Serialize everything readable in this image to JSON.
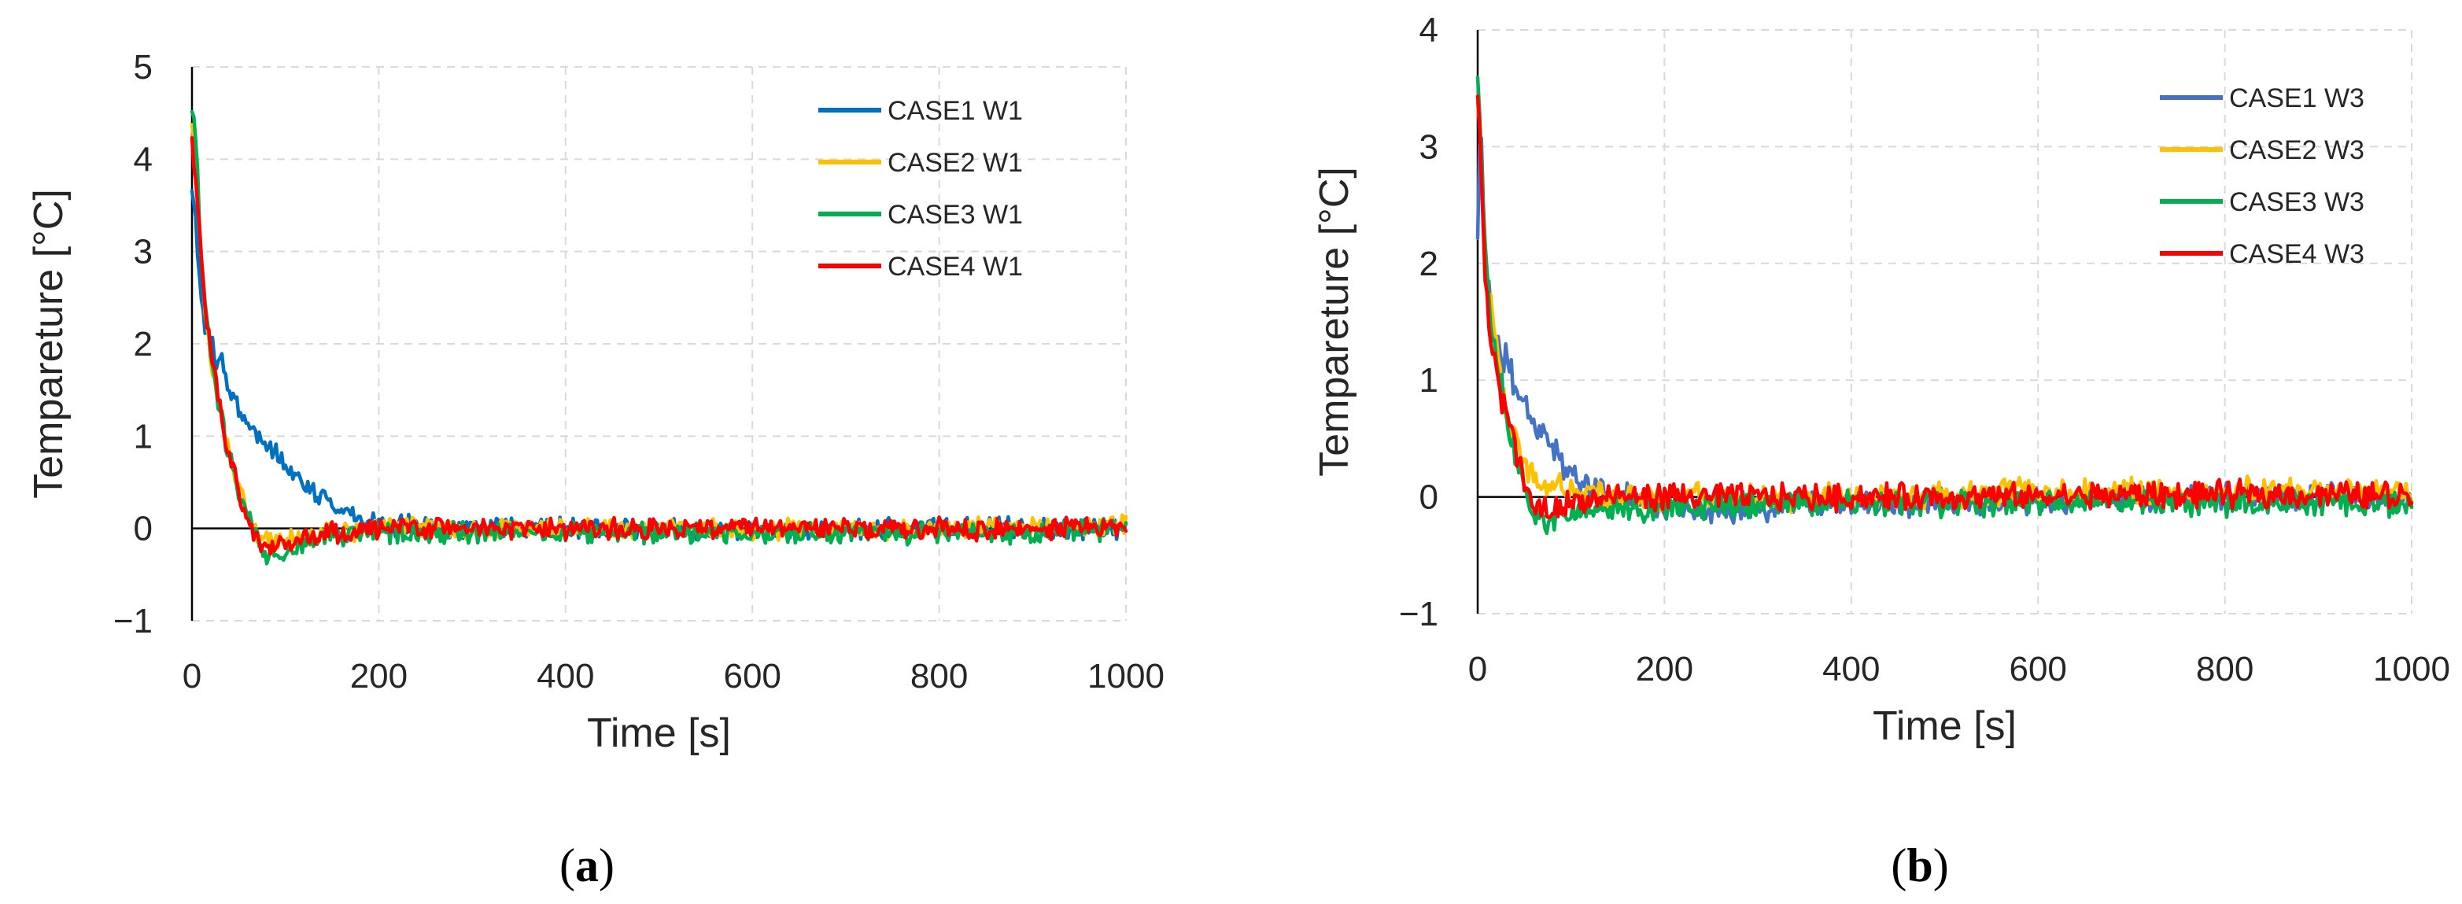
{
  "chart_data": [
    {
      "type": "line",
      "panel_label_text": "a",
      "xlabel": "Time [s]",
      "ylabel": "Tempareture [°C]",
      "xlim": [
        0,
        1000
      ],
      "ylim": [
        -1,
        5
      ],
      "xticks": [
        0,
        200,
        400,
        600,
        800,
        1000
      ],
      "yticks": [
        -1,
        0,
        1,
        2,
        3,
        4,
        5
      ],
      "ytick_labels": [
        "−1",
        "0",
        "1",
        "2",
        "3",
        "4",
        "5"
      ],
      "grid": true,
      "legend_position": "top-right",
      "series": [
        {
          "name": "CASE1 W1",
          "color": "#0070c0",
          "x": [
            0,
            5,
            10,
            15,
            20,
            30,
            40,
            50,
            60,
            80,
            100,
            120,
            140,
            160,
            180,
            200,
            250,
            300,
            400,
            500,
            600,
            700,
            800,
            900,
            1000
          ],
          "y": [
            3.6,
            3.2,
            2.5,
            2.1,
            2.0,
            1.8,
            1.5,
            1.3,
            1.15,
            0.9,
            0.7,
            0.5,
            0.35,
            0.2,
            0.1,
            0.05,
            0.0,
            0.0,
            0.0,
            0.0,
            -0.05,
            0.0,
            0.0,
            0.0,
            0.0
          ]
        },
        {
          "name": "CASE2 W1",
          "color": "#ffc000",
          "x": [
            0,
            5,
            10,
            15,
            20,
            30,
            40,
            50,
            60,
            70,
            80,
            100,
            120,
            150,
            200,
            300,
            400,
            500,
            600,
            700,
            800,
            900,
            1000
          ],
          "y": [
            4.4,
            3.8,
            3.0,
            2.2,
            1.8,
            1.3,
            0.8,
            0.45,
            0.15,
            -0.05,
            -0.15,
            -0.12,
            -0.08,
            -0.05,
            0.0,
            0.0,
            0.0,
            0.0,
            0.0,
            0.0,
            0.0,
            0.0,
            0.05
          ]
        },
        {
          "name": "CASE3 W1",
          "color": "#00b050",
          "x": [
            0,
            5,
            10,
            15,
            20,
            30,
            40,
            50,
            60,
            70,
            80,
            100,
            120,
            150,
            200,
            300,
            400,
            500,
            600,
            700,
            800,
            900,
            1000
          ],
          "y": [
            4.5,
            4.0,
            3.1,
            2.3,
            1.9,
            1.3,
            0.8,
            0.4,
            0.1,
            -0.1,
            -0.25,
            -0.25,
            -0.15,
            -0.1,
            -0.05,
            -0.05,
            -0.05,
            -0.05,
            -0.05,
            -0.05,
            -0.05,
            -0.05,
            0.0
          ]
        },
        {
          "name": "CASE4 W1",
          "color": "#ff0000",
          "x": [
            0,
            5,
            10,
            15,
            20,
            30,
            40,
            50,
            60,
            70,
            80,
            100,
            120,
            150,
            200,
            300,
            400,
            500,
            600,
            700,
            800,
            900,
            1000
          ],
          "y": [
            4.3,
            3.7,
            2.9,
            2.2,
            1.9,
            1.3,
            0.8,
            0.4,
            0.1,
            -0.1,
            -0.2,
            -0.18,
            -0.1,
            -0.05,
            0.0,
            0.0,
            0.0,
            0.0,
            0.0,
            0.0,
            0.0,
            0.0,
            0.0
          ]
        }
      ]
    },
    {
      "type": "line",
      "panel_label_text": "b",
      "xlabel": "Time [s]",
      "ylabel": "Tempareture [°C]",
      "xlim": [
        0,
        1000
      ],
      "ylim": [
        -1,
        4
      ],
      "xticks": [
        0,
        200,
        400,
        600,
        800,
        1000
      ],
      "yticks": [
        -1,
        0,
        1,
        2,
        3,
        4
      ],
      "ytick_labels": [
        "−1",
        "0",
        "1",
        "2",
        "3",
        "4"
      ],
      "grid": true,
      "legend_position": "top-right",
      "series": [
        {
          "name": "CASE1 W3",
          "color": "#4472c4",
          "x": [
            0,
            3,
            6,
            10,
            15,
            20,
            30,
            40,
            50,
            60,
            70,
            80,
            90,
            100,
            120,
            150,
            200,
            250,
            300,
            400,
            500,
            600,
            700,
            800,
            900,
            1000
          ],
          "y": [
            2.3,
            3.3,
            2.5,
            1.8,
            1.6,
            1.3,
            1.2,
            1.0,
            0.8,
            0.65,
            0.55,
            0.45,
            0.3,
            0.2,
            0.1,
            0.05,
            -0.1,
            -0.12,
            -0.1,
            -0.05,
            -0.05,
            -0.05,
            0.0,
            0.0,
            0.0,
            0.0
          ]
        },
        {
          "name": "CASE2 W3",
          "color": "#ffc000",
          "x": [
            0,
            3,
            6,
            10,
            15,
            20,
            30,
            40,
            50,
            60,
            70,
            80,
            100,
            150,
            200,
            300,
            400,
            500,
            600,
            700,
            800,
            900,
            1000
          ],
          "y": [
            3.3,
            3.0,
            2.4,
            1.9,
            1.6,
            1.3,
            0.8,
            0.5,
            0.3,
            0.15,
            0.1,
            0.1,
            0.05,
            0.0,
            0.0,
            0.0,
            0.0,
            0.0,
            0.05,
            0.05,
            0.05,
            0.05,
            0.05
          ]
        },
        {
          "name": "CASE3 W3",
          "color": "#00b050",
          "x": [
            0,
            3,
            6,
            10,
            15,
            20,
            30,
            40,
            50,
            60,
            70,
            80,
            100,
            150,
            200,
            300,
            400,
            500,
            600,
            700,
            800,
            900,
            1000
          ],
          "y": [
            3.6,
            3.2,
            2.5,
            1.9,
            1.5,
            1.2,
            0.7,
            0.35,
            0.1,
            -0.1,
            -0.2,
            -0.2,
            -0.15,
            -0.1,
            -0.1,
            -0.05,
            -0.05,
            -0.05,
            -0.05,
            -0.05,
            -0.05,
            -0.05,
            -0.05
          ]
        },
        {
          "name": "CASE4 W3",
          "color": "#ff0000",
          "x": [
            0,
            3,
            6,
            10,
            15,
            20,
            30,
            40,
            50,
            60,
            70,
            80,
            100,
            150,
            200,
            300,
            400,
            500,
            600,
            700,
            800,
            900,
            1000
          ],
          "y": [
            3.4,
            3.0,
            2.3,
            1.7,
            1.4,
            1.1,
            0.7,
            0.4,
            0.1,
            -0.05,
            -0.1,
            -0.1,
            -0.05,
            0.0,
            0.0,
            0.0,
            0.0,
            0.0,
            0.0,
            0.02,
            0.02,
            0.02,
            0.02
          ]
        }
      ]
    }
  ]
}
